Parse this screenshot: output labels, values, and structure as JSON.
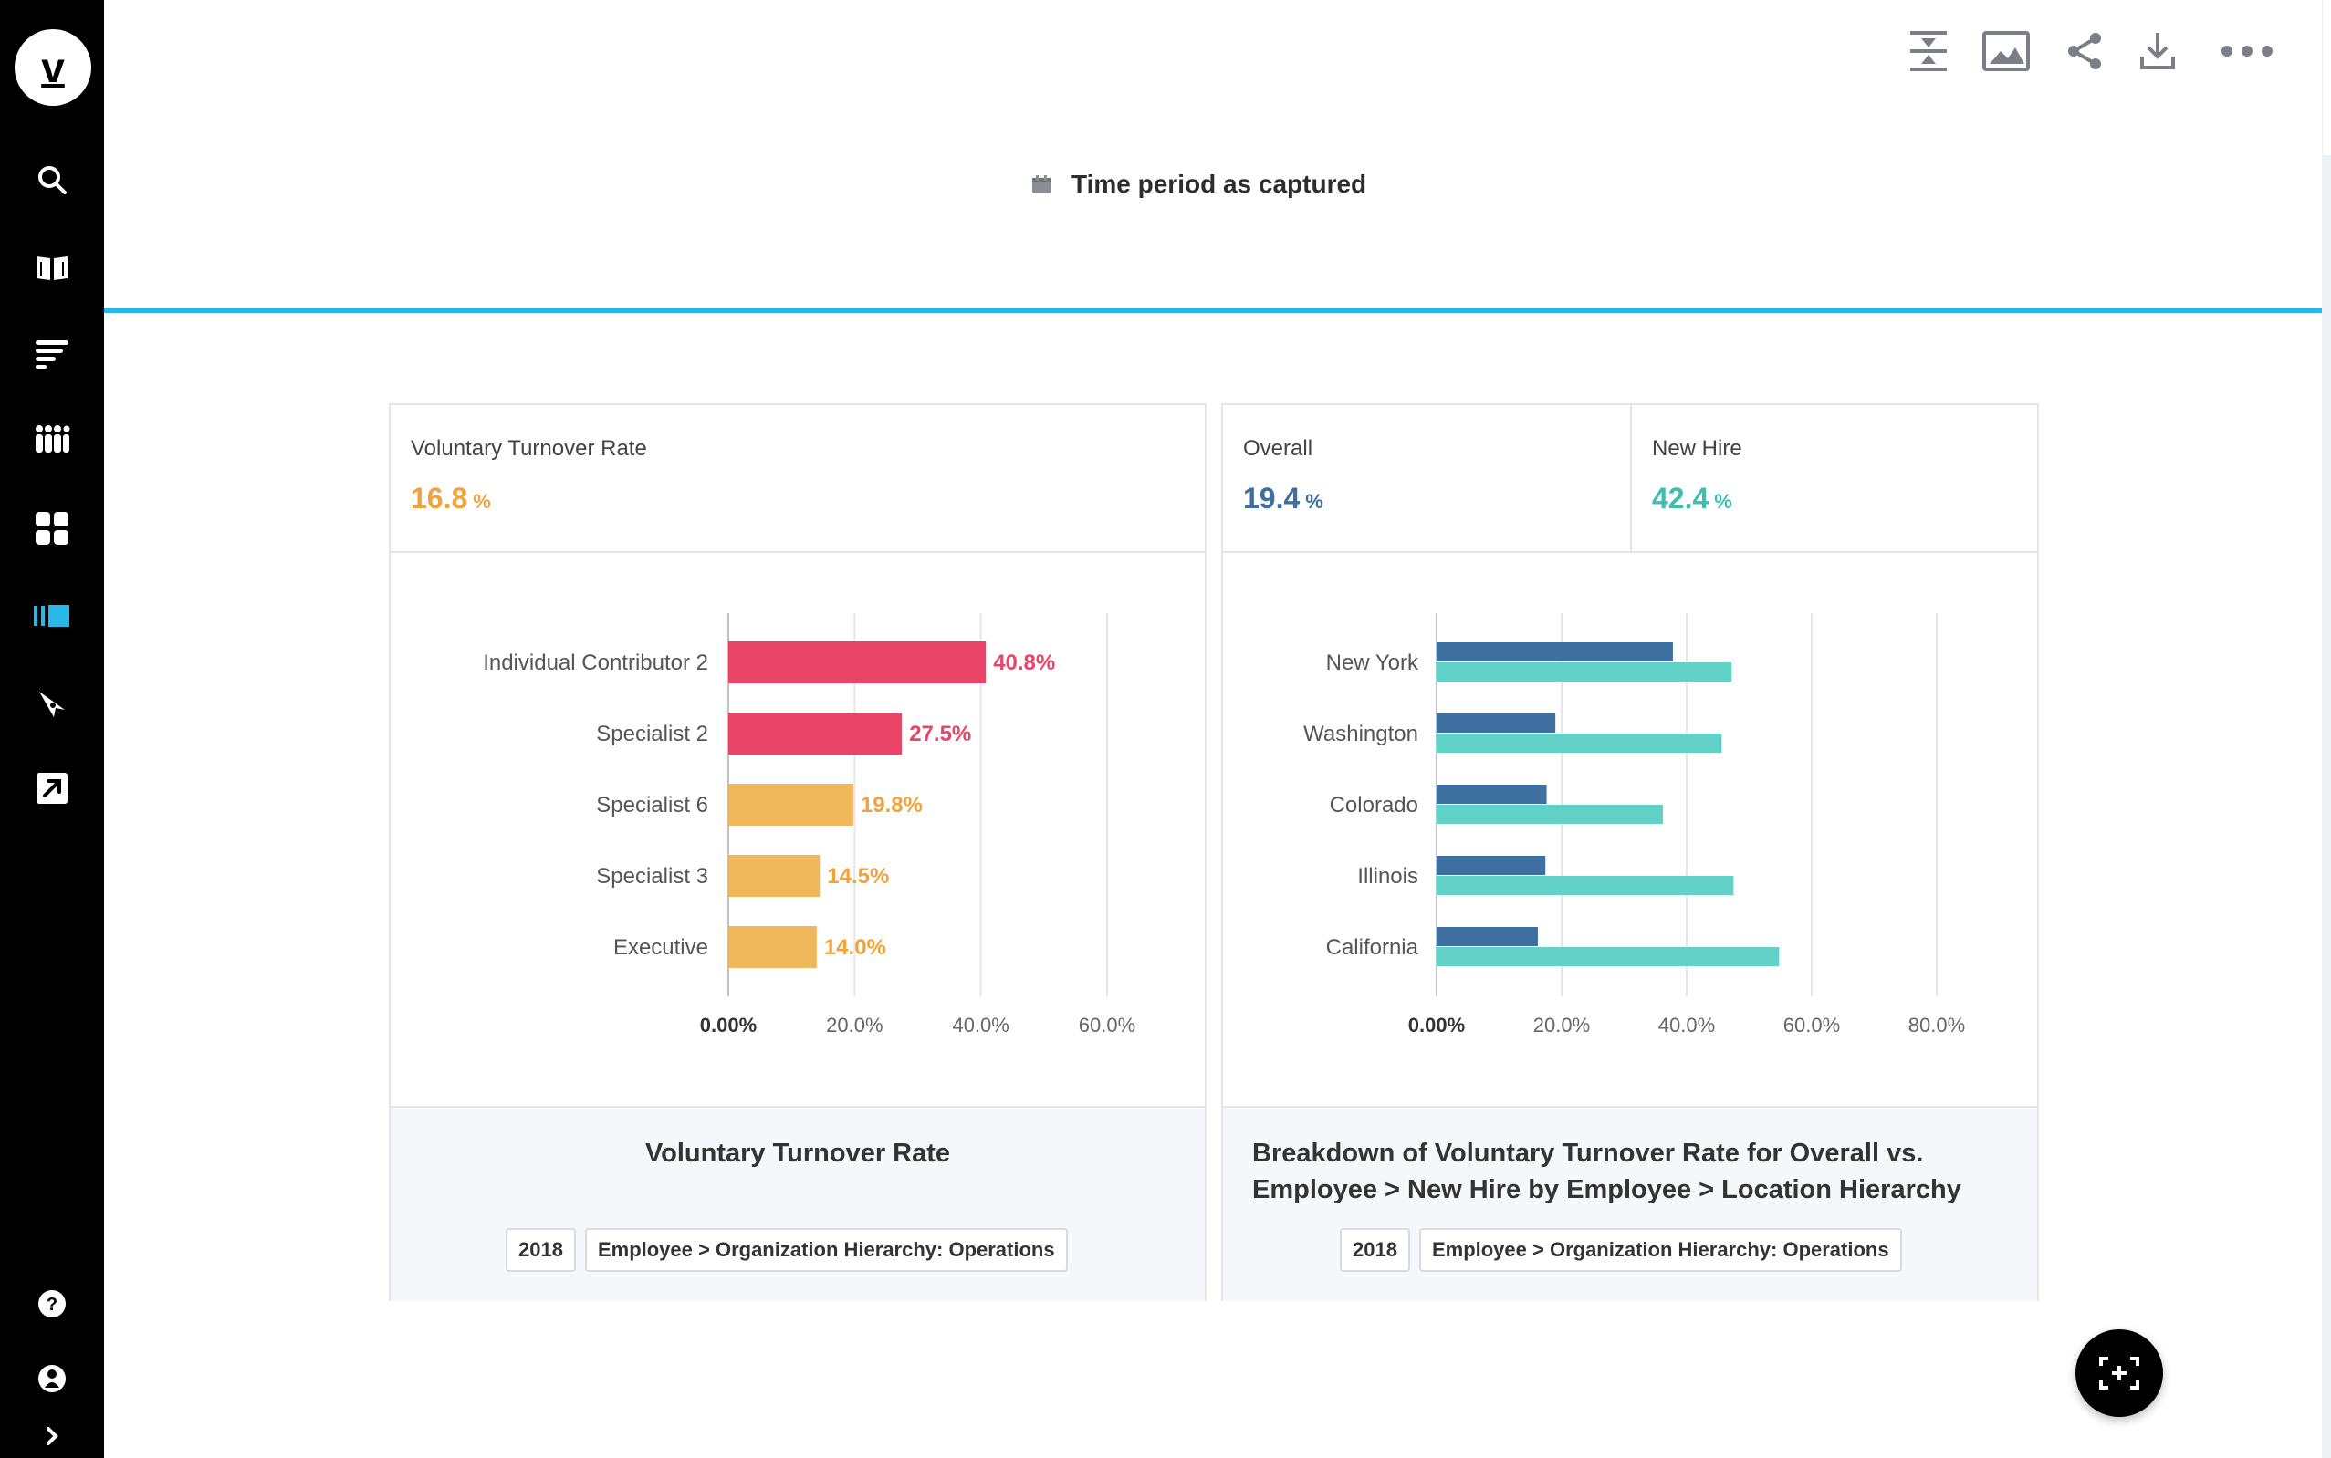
{
  "app": {
    "logo_letter": "v"
  },
  "header": {
    "time_period": "Time period as captured"
  },
  "colors": {
    "accent": "#29b7e8",
    "red": "#ea4468",
    "orange": "#f0b65a",
    "orange_text": "#f0a33a",
    "dark_blue": "#3e6fa1",
    "teal": "#62d2c9",
    "teal_text": "#3bbfae"
  },
  "card1": {
    "kpi": {
      "label": "Voluntary Turnover Rate",
      "value": "16.8",
      "unit": "%"
    },
    "footer": {
      "title": "Voluntary Turnover Rate",
      "tags": [
        "2018",
        "Employee > Organization Hierarchy: Operations"
      ]
    }
  },
  "card2": {
    "kpis": [
      {
        "label": "Overall",
        "value": "19.4",
        "unit": "%"
      },
      {
        "label": "New Hire",
        "value": "42.4",
        "unit": "%"
      }
    ],
    "footer": {
      "title_line1": "Breakdown of Voluntary Turnover Rate for Overall vs.",
      "title_line2": "Employee > New Hire by Employee > Location Hierarchy",
      "tags": [
        "2018",
        "Employee > Organization Hierarchy: Operations"
      ]
    }
  },
  "chart_data": [
    {
      "type": "bar",
      "orientation": "horizontal",
      "title": "Voluntary Turnover Rate",
      "categories": [
        "Individual Contributor 2",
        "Specialist 2",
        "Specialist 6",
        "Specialist 3",
        "Executive"
      ],
      "values": [
        40.8,
        27.5,
        19.8,
        14.5,
        14.0
      ],
      "value_labels": [
        "40.8%",
        "27.5%",
        "19.8%",
        "14.5%",
        "14.0%"
      ],
      "bar_colors": [
        "red",
        "red",
        "orange",
        "orange",
        "orange"
      ],
      "xlim": [
        0,
        60
      ],
      "ticks": [
        0,
        20,
        40,
        60
      ],
      "tick_labels": [
        "0.00%",
        "20.0%",
        "40.0%",
        "60.0%"
      ]
    },
    {
      "type": "bar",
      "orientation": "horizontal",
      "title": "Breakdown of Voluntary Turnover Rate for Overall vs. Employee > New Hire by Employee > Location Hierarchy",
      "categories": [
        "New York",
        "Washington",
        "Colorado",
        "Illinois",
        "California"
      ],
      "series": [
        {
          "name": "Overall",
          "values": [
            37.8,
            19.0,
            17.6,
            17.4,
            16.2
          ]
        },
        {
          "name": "New Hire",
          "values": [
            47.2,
            45.6,
            36.2,
            47.5,
            54.8
          ]
        }
      ],
      "xlim": [
        0,
        80
      ],
      "ticks": [
        0,
        20,
        40,
        60,
        80
      ],
      "tick_labels": [
        "0.00%",
        "20.0%",
        "40.0%",
        "60.0%",
        "80.0%"
      ]
    }
  ]
}
